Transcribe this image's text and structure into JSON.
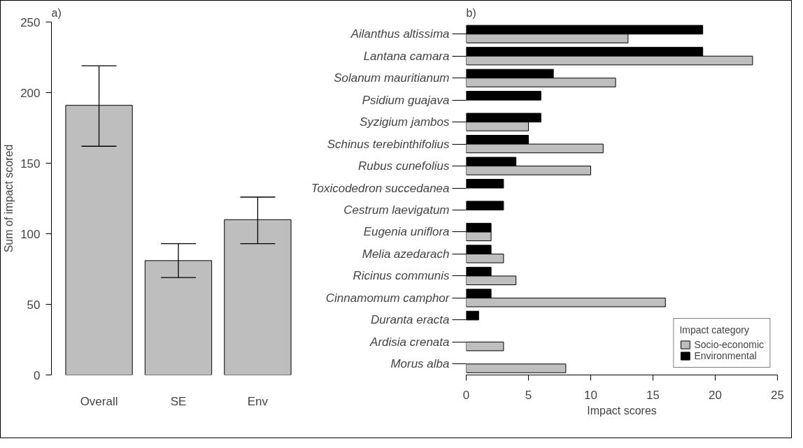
{
  "chart_data": [
    {
      "type": "bar",
      "title": "a)",
      "ylabel": "Sum of impact scored",
      "categories": [
        "Overall",
        "SE",
        "Env"
      ],
      "values": [
        191,
        81,
        110
      ],
      "color": "#bebebe",
      "errors": [
        [
          162,
          219
        ],
        [
          69,
          93
        ],
        [
          93,
          126
        ]
      ],
      "ylim": [
        0,
        250
      ],
      "yticks": [
        0,
        50,
        100,
        150,
        200,
        250
      ],
      "grid": false
    },
    {
      "type": "bar",
      "title": "b)",
      "xlabel": "Impact scores",
      "orientation": "horizontal",
      "legend_title": "Impact category",
      "legend": "bottom right",
      "grid": false,
      "categories": [
        "Ailanthus altissima",
        "Lantana camara",
        "Solanum mauritianum",
        "Psidium guajava",
        "Syzigium jambos",
        "Schinus terebinthifolius",
        "Rubus cunefolius",
        "Toxicodedron succedanea",
        "Cestrum laevigatum",
        "Eugenia uniflora",
        "Melia azedarach",
        "Ricinus communis",
        "Cinnamomum camphor",
        "Duranta eracta",
        "Ardisia crenata",
        "Morus alba"
      ],
      "series": [
        {
          "name": "Environmental",
          "color": "#000000",
          "values": [
            19,
            19,
            7,
            6,
            6,
            5,
            4,
            3,
            3,
            2,
            2,
            2,
            2,
            1,
            0,
            0
          ]
        },
        {
          "name": "Socio-economic",
          "color": "#bebebe",
          "values": [
            13,
            23,
            12,
            0,
            5,
            11,
            10,
            0,
            0,
            2,
            3,
            4,
            16,
            0,
            3,
            8
          ]
        }
      ],
      "xlim": [
        0,
        25
      ],
      "xticks": [
        0,
        5,
        10,
        15,
        20,
        25
      ]
    }
  ]
}
